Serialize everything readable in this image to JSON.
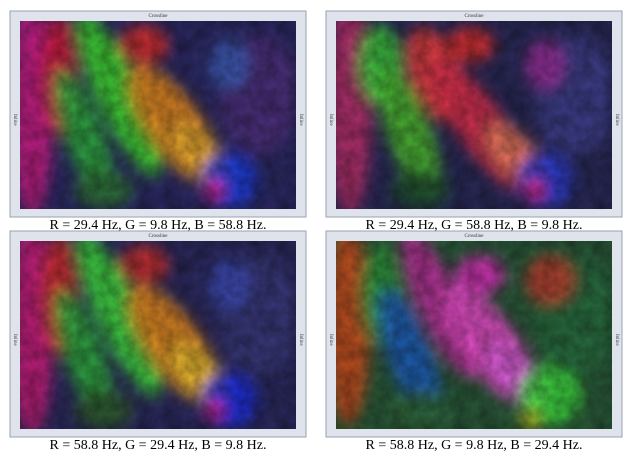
{
  "panels": [
    {
      "caption": "R = 29.4 Hz, G = 9.8 Hz, B = 58.8 Hz.",
      "axis_top": "Crossline",
      "axis_left": "Inline",
      "axis_right": "Inline"
    },
    {
      "caption": "R = 29.4 Hz, G = 58.8 Hz, B = 9.8 Hz.",
      "axis_top": "Crossline",
      "axis_left": "Inline",
      "axis_right": "Inline"
    },
    {
      "caption": "R = 58.8 Hz, G = 29.4 Hz, B = 9.8 Hz.",
      "axis_top": "Crossline",
      "axis_left": "Inline",
      "axis_right": "Inline"
    },
    {
      "caption": "R = 58.8 Hz, G = 9.8 Hz, B = 29.4 Hz.",
      "axis_top": "Crossline",
      "axis_left": "Inline",
      "axis_right": "Inline"
    }
  ]
}
